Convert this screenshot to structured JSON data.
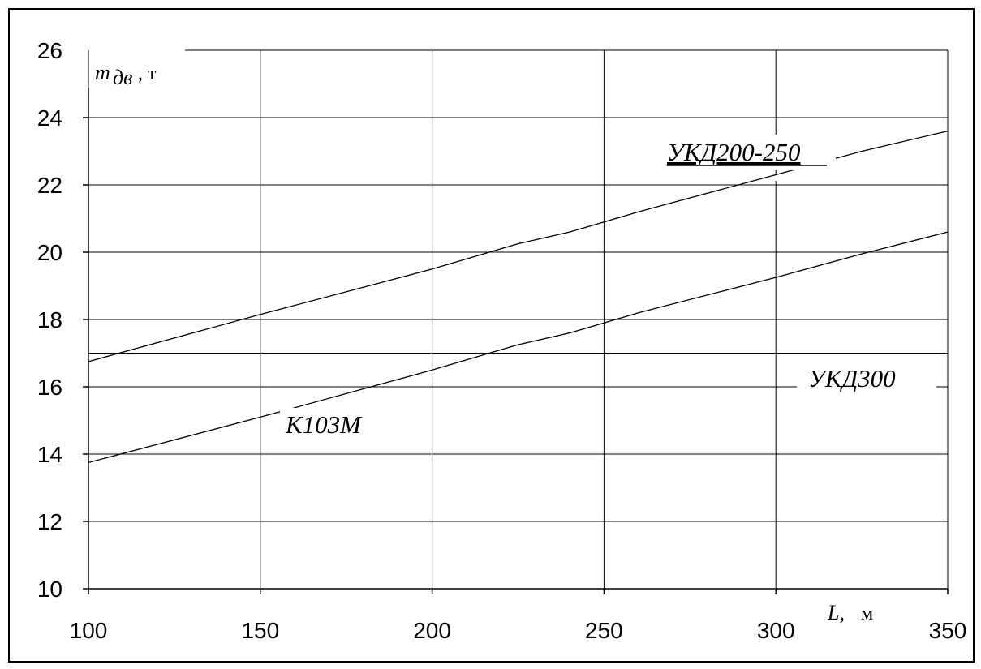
{
  "chart_data": {
    "type": "line",
    "xlabel": "L,",
    "xunit": "м",
    "ylabel": "m",
    "ylabel_sub": "дв",
    "yunit": ", т",
    "xlim": [
      100,
      350
    ],
    "ylim": [
      10,
      26
    ],
    "xticks": [
      100,
      150,
      200,
      250,
      300,
      350
    ],
    "yticks": [
      10,
      12,
      14,
      16,
      18,
      20,
      22,
      24,
      26
    ],
    "grid": true,
    "extra_hlines": [
      17
    ],
    "series": [
      {
        "name": "УКД200-250",
        "x": [
          100,
          150,
          200,
          225,
          240,
          250,
          260,
          300,
          325,
          350
        ],
        "values": [
          16.75,
          18.15,
          19.5,
          20.25,
          20.6,
          20.9,
          21.2,
          22.3,
          23.0,
          23.6
        ]
      },
      {
        "name": "К103М",
        "x": [
          100,
          150,
          200,
          225,
          240,
          250,
          260,
          300,
          325,
          350
        ],
        "values": [
          13.75,
          15.1,
          16.5,
          17.25,
          17.6,
          17.9,
          18.2,
          19.25,
          19.95,
          20.6
        ]
      }
    ],
    "annotations": [
      {
        "text": "УКД200-250",
        "underline": true
      },
      {
        "text": "УКД300"
      },
      {
        "text": "К103М"
      }
    ],
    "line_color": "#000000"
  }
}
